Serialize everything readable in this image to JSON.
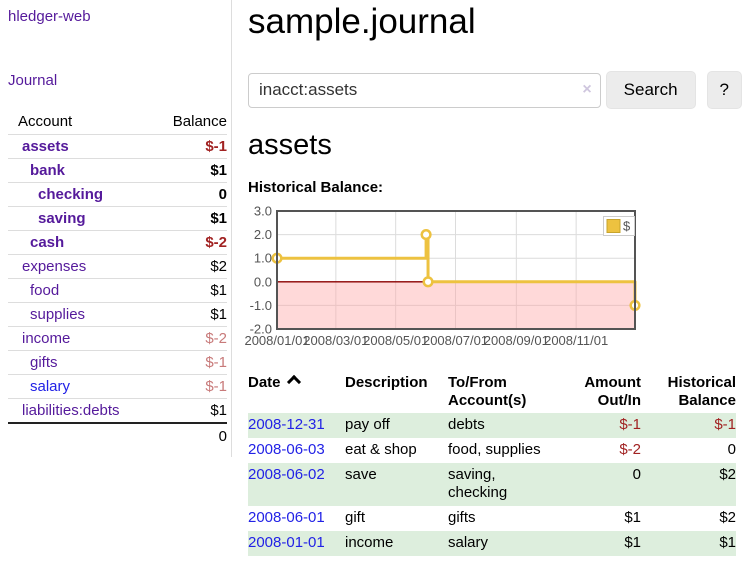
{
  "app": {
    "title": "hledger-web"
  },
  "sidebar": {
    "journal_link": "Journal",
    "accounts": {
      "headers": [
        "Account",
        "Balance"
      ],
      "rows": [
        {
          "account": "assets",
          "balance": "$-1",
          "depth": 1,
          "in_query": true,
          "balance_style": "negative"
        },
        {
          "account": "bank",
          "balance": "$1",
          "depth": 2,
          "in_query": true,
          "balance_style": "normal"
        },
        {
          "account": "checking",
          "balance": "0",
          "depth": 3,
          "in_query": true,
          "balance_style": "normal"
        },
        {
          "account": "saving",
          "balance": "$1",
          "depth": 3,
          "in_query": true,
          "balance_style": "normal"
        },
        {
          "account": "cash",
          "balance": "$-2",
          "depth": 2,
          "in_query": true,
          "balance_style": "negative"
        },
        {
          "account": "expenses",
          "balance": "$2",
          "depth": 1,
          "in_query": false,
          "balance_style": "normal"
        },
        {
          "account": "food",
          "balance": "$1",
          "depth": 2,
          "in_query": false,
          "balance_style": "normal"
        },
        {
          "account": "supplies",
          "balance": "$1",
          "depth": 2,
          "in_query": false,
          "balance_style": "normal"
        },
        {
          "account": "income",
          "balance": "$-2",
          "depth": 1,
          "in_query": false,
          "balance_style": "negative-soft"
        },
        {
          "account": "gifts",
          "balance": "$-1",
          "depth": 2,
          "in_query": false,
          "balance_style": "negative-soft"
        },
        {
          "account": "salary",
          "balance": "$-1",
          "depth": 2,
          "in_query": false,
          "balance_style": "negative-soft",
          "link_style": "unvisited"
        },
        {
          "account": "liabilities:debts",
          "balance": "$1",
          "depth": 1,
          "in_query": false,
          "balance_style": "normal"
        }
      ],
      "total": "0"
    }
  },
  "main": {
    "title": "sample.journal",
    "search": {
      "value": "inacct:assets",
      "clear_icon": "×",
      "button_label": "Search",
      "help_label": "?"
    },
    "section_title": "assets",
    "chart_label": "Historical Balance:"
  },
  "chart_data": {
    "type": "line",
    "step": true,
    "title": "Historical Balance",
    "series": [
      {
        "name": "$",
        "color": "#edc240",
        "points": [
          [
            "2008-01-01",
            1
          ],
          [
            "2008-06-01",
            2
          ],
          [
            "2008-06-03",
            0
          ],
          [
            "2008-12-31",
            -1
          ]
        ]
      }
    ],
    "x_ticks": [
      "2008/01/01",
      "2008/03/01",
      "2008/05/01",
      "2008/07/01",
      "2008/09/01",
      "2008/11/01"
    ],
    "y_ticks": [
      "3.0",
      "2.0",
      "1.0",
      "0.0",
      "-1.0",
      "-2.0"
    ],
    "ylim": [
      -2,
      3
    ],
    "xlim": [
      "2008-01-01",
      "2008-12-31"
    ],
    "grid": true,
    "legend": {
      "label": "$",
      "position": "top-right"
    },
    "zero_line_color": "#8b0000",
    "negative_fill": "rgba(255,160,160,0.4)",
    "grid_color": "#dcdcdc",
    "border_color": "#545454",
    "axis_text_color": "#545454"
  },
  "transactions": {
    "headers": [
      "Date",
      "Description",
      "To/From Account(s)",
      "Amount Out/In",
      "Historical Balance"
    ],
    "sort": {
      "column": "Date",
      "indicator": "up"
    },
    "rows": [
      {
        "date": "2008-12-31",
        "description": "pay off",
        "accounts": "debts",
        "amount": "$-1",
        "amount_negative": true,
        "balance": "$-1",
        "balance_negative": true
      },
      {
        "date": "2008-06-03",
        "description": "eat & shop",
        "accounts": "food, supplies",
        "amount": "$-2",
        "amount_negative": true,
        "balance": "0",
        "balance_negative": false
      },
      {
        "date": "2008-06-02",
        "description": "save",
        "accounts": "saving, checking",
        "amount": "0",
        "amount_negative": false,
        "balance": "$2",
        "balance_negative": false
      },
      {
        "date": "2008-06-01",
        "description": "gift",
        "accounts": "gifts",
        "amount": "$1",
        "amount_negative": false,
        "balance": "$2",
        "balance_negative": false
      },
      {
        "date": "2008-01-01",
        "description": "income",
        "accounts": "salary",
        "amount": "$1",
        "amount_negative": false,
        "balance": "$1",
        "balance_negative": false
      }
    ]
  },
  "colors": {
    "link_visited_purple": "#551a9b",
    "link_blue": "#2222e6",
    "negative_strong": "#a12222",
    "negative_soft": "#c87a7a",
    "row_stripe_green": "#ddeedd",
    "chart_line": "#edc240"
  }
}
